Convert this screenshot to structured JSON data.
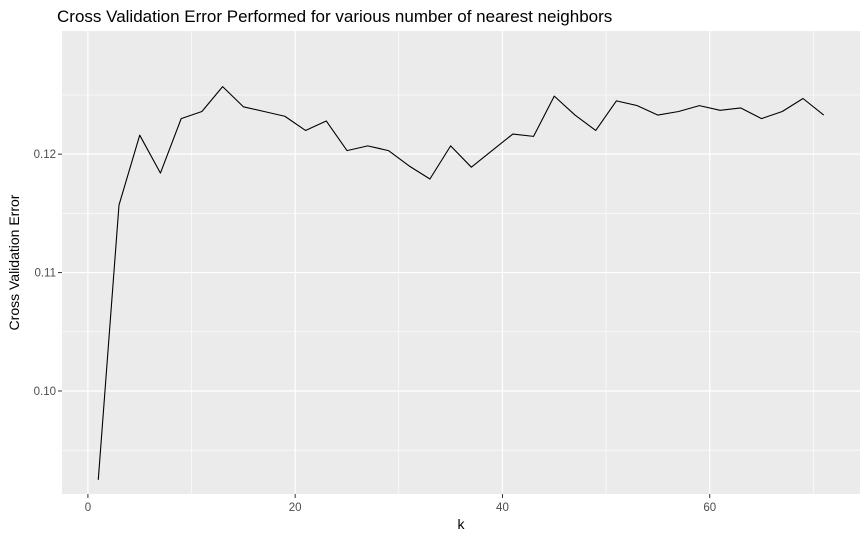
{
  "chart_data": {
    "type": "line",
    "title": "Cross Validation Error Performed for various number of nearest neighbors",
    "xlabel": "k",
    "ylabel": "Cross Validation Error",
    "xlim": [
      -2.5,
      74.5
    ],
    "ylim": [
      0.0913,
      0.1304
    ],
    "x_ticks": [
      0,
      20,
      40,
      60
    ],
    "x_tick_labels": [
      "0",
      "20",
      "40",
      "60"
    ],
    "x_minor_ticks": [
      10,
      30,
      50,
      70
    ],
    "y_ticks": [
      0.1,
      0.11,
      0.12
    ],
    "y_tick_labels": [
      "0.10",
      "0.11",
      "0.12"
    ],
    "y_minor_ticks": [
      0.095,
      0.105,
      0.115,
      0.125
    ],
    "grid": true,
    "background": "#EBEBEB",
    "line_color": "#000000",
    "series": [
      {
        "x": [
          1,
          3,
          5,
          7,
          9,
          11,
          13,
          15,
          17,
          19,
          21,
          23,
          25,
          27,
          29,
          31,
          33,
          35,
          37,
          39,
          41,
          43,
          45,
          47,
          49,
          51,
          53,
          55,
          57,
          59,
          61,
          63,
          65,
          67,
          69,
          71
        ],
        "values": [
          0.0925,
          0.1157,
          0.1216,
          0.1184,
          0.123,
          0.1236,
          0.1257,
          0.124,
          0.1236,
          0.1232,
          0.122,
          0.1228,
          0.1203,
          0.1207,
          0.1203,
          0.119,
          0.1179,
          0.1207,
          0.1189,
          0.1203,
          0.1217,
          0.1215,
          0.1249,
          0.1233,
          0.122,
          0.1245,
          0.1241,
          0.1233,
          0.1236,
          0.1241,
          0.1237,
          0.1239,
          0.123,
          0.1236,
          0.1247,
          0.1233
        ]
      }
    ]
  }
}
